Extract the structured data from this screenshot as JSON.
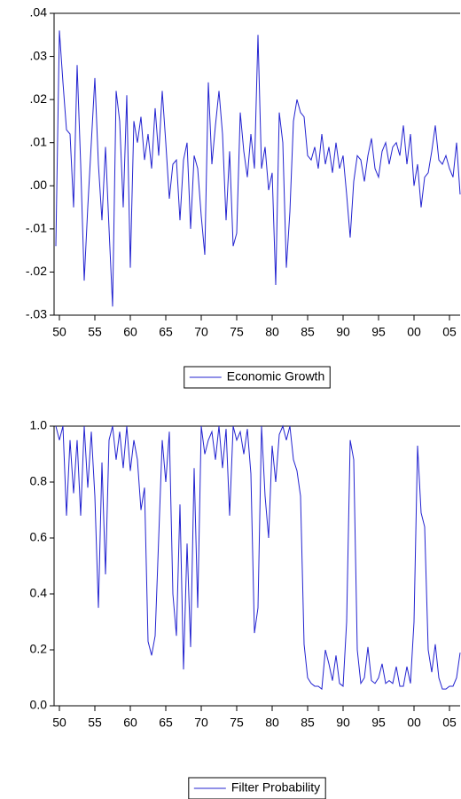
{
  "chart_data": [
    {
      "type": "line",
      "xlim": [
        1949.25,
        2006.5
      ],
      "xticks": [
        {
          "value": 1950,
          "label": "50"
        },
        {
          "value": 1955,
          "label": "55"
        },
        {
          "value": 1960,
          "label": "60"
        },
        {
          "value": 1965,
          "label": "65"
        },
        {
          "value": 1970,
          "label": "70"
        },
        {
          "value": 1975,
          "label": "75"
        },
        {
          "value": 1980,
          "label": "80"
        },
        {
          "value": 1985,
          "label": "85"
        },
        {
          "value": 1990,
          "label": "90"
        },
        {
          "value": 1995,
          "label": "95"
        },
        {
          "value": 2000,
          "label": "00"
        },
        {
          "value": 2005,
          "label": "05"
        }
      ],
      "ylim": [
        -0.03,
        0.04
      ],
      "yticks": [
        {
          "value": -0.03,
          "label": "-.03"
        },
        {
          "value": -0.02,
          "label": "-.02"
        },
        {
          "value": -0.01,
          "label": "-.01"
        },
        {
          "value": 0,
          "label": ".00"
        },
        {
          "value": 0.01,
          "label": ".01"
        },
        {
          "value": 0.02,
          "label": ".02"
        },
        {
          "value": 0.03,
          "label": ".03"
        },
        {
          "value": 0.04,
          "label": ".04"
        }
      ],
      "x": [
        1949.5,
        1950,
        1950.5,
        1951,
        1951.5,
        1952,
        1952.5,
        1953,
        1953.5,
        1954,
        1954.5,
        1955,
        1955.5,
        1956,
        1956.5,
        1957,
        1957.5,
        1958,
        1958.5,
        1959,
        1959.5,
        1960,
        1960.5,
        1961,
        1961.5,
        1962,
        1962.5,
        1963,
        1963.5,
        1964,
        1964.5,
        1965,
        1965.5,
        1966,
        1966.5,
        1967,
        1967.5,
        1968,
        1968.5,
        1969,
        1969.5,
        1970,
        1970.5,
        1971,
        1971.5,
        1972,
        1972.5,
        1973,
        1973.5,
        1974,
        1974.5,
        1975,
        1975.5,
        1976,
        1976.5,
        1977,
        1977.5,
        1978,
        1978.5,
        1979,
        1979.5,
        1980,
        1980.5,
        1981,
        1981.5,
        1982,
        1982.5,
        1983,
        1983.5,
        1984,
        1984.5,
        1985,
        1985.5,
        1986,
        1986.5,
        1987,
        1987.5,
        1988,
        1988.5,
        1989,
        1989.5,
        1990,
        1990.5,
        1991,
        1991.5,
        1992,
        1992.5,
        1993,
        1993.5,
        1994,
        1994.5,
        1995,
        1995.5,
        1996,
        1996.5,
        1997,
        1997.5,
        1998,
        1998.5,
        1999,
        1999.5,
        2000,
        2000.5,
        2001,
        2001.5,
        2002,
        2002.5,
        2003,
        2003.5,
        2004,
        2004.5,
        2005,
        2005.5,
        2006,
        2006.5
      ],
      "series": [
        {
          "name": "Economic Growth",
          "color": "#2323d0",
          "values": [
            -0.014,
            0.036,
            0.024,
            0.013,
            0.012,
            -0.005,
            0.028,
            0.005,
            -0.022,
            -0.005,
            0.01,
            0.025,
            0.005,
            -0.008,
            0.009,
            -0.01,
            -0.028,
            0.022,
            0.015,
            -0.005,
            0.021,
            -0.019,
            0.015,
            0.01,
            0.016,
            0.006,
            0.012,
            0.004,
            0.018,
            0.007,
            0.022,
            0.01,
            -0.003,
            0.005,
            0.006,
            -0.008,
            0.006,
            0.01,
            -0.01,
            0.007,
            0.004,
            -0.007,
            -0.016,
            0.024,
            0.005,
            0.014,
            0.022,
            0.012,
            -0.008,
            0.008,
            -0.014,
            -0.011,
            0.017,
            0.008,
            0.002,
            0.012,
            0.004,
            0.035,
            0.004,
            0.009,
            -0.001,
            0.003,
            -0.023,
            0.017,
            0.01,
            -0.019,
            -0.006,
            0.015,
            0.02,
            0.017,
            0.016,
            0.007,
            0.006,
            0.009,
            0.004,
            0.012,
            0.005,
            0.009,
            0.003,
            0.01,
            0.004,
            0.007,
            -0.002,
            -0.012,
            0.001,
            0.007,
            0.006,
            0.001,
            0.007,
            0.011,
            0.004,
            0.002,
            0.008,
            0.01,
            0.005,
            0.009,
            0.01,
            0.007,
            0.014,
            0.005,
            0.012,
            0.0,
            0.005,
            -0.005,
            0.002,
            0.003,
            0.008,
            0.014,
            0.006,
            0.005,
            0.007,
            0.004,
            0.002,
            0.01,
            -0.002
          ]
        }
      ]
    },
    {
      "type": "line",
      "xlim": [
        1949.25,
        2006.5
      ],
      "xticks": [
        {
          "value": 1950,
          "label": "50"
        },
        {
          "value": 1955,
          "label": "55"
        },
        {
          "value": 1960,
          "label": "60"
        },
        {
          "value": 1965,
          "label": "65"
        },
        {
          "value": 1970,
          "label": "70"
        },
        {
          "value": 1975,
          "label": "75"
        },
        {
          "value": 1980,
          "label": "80"
        },
        {
          "value": 1985,
          "label": "85"
        },
        {
          "value": 1990,
          "label": "90"
        },
        {
          "value": 1995,
          "label": "95"
        },
        {
          "value": 2000,
          "label": "00"
        },
        {
          "value": 2005,
          "label": "05"
        }
      ],
      "ylim": [
        0,
        1
      ],
      "yticks": [
        {
          "value": 0,
          "label": "0.0"
        },
        {
          "value": 0.2,
          "label": "0.2"
        },
        {
          "value": 0.4,
          "label": "0.4"
        },
        {
          "value": 0.6,
          "label": "0.6"
        },
        {
          "value": 0.8,
          "label": "0.8"
        },
        {
          "value": 1,
          "label": "1.0"
        }
      ],
      "x": [
        1949.5,
        1950,
        1950.5,
        1951,
        1951.5,
        1952,
        1952.5,
        1953,
        1953.5,
        1954,
        1954.5,
        1955,
        1955.5,
        1956,
        1956.5,
        1957,
        1957.5,
        1958,
        1958.5,
        1959,
        1959.5,
        1960,
        1960.5,
        1961,
        1961.5,
        1962,
        1962.5,
        1963,
        1963.5,
        1964,
        1964.5,
        1965,
        1965.5,
        1966,
        1966.5,
        1967,
        1967.5,
        1968,
        1968.5,
        1969,
        1969.5,
        1970,
        1970.5,
        1971,
        1971.5,
        1972,
        1972.5,
        1973,
        1973.5,
        1974,
        1974.5,
        1975,
        1975.5,
        1976,
        1976.5,
        1977,
        1977.5,
        1978,
        1978.5,
        1979,
        1979.5,
        1980,
        1980.5,
        1981,
        1981.5,
        1982,
        1982.5,
        1983,
        1983.5,
        1984,
        1984.5,
        1985,
        1985.5,
        1986,
        1986.5,
        1987,
        1987.5,
        1988,
        1988.5,
        1989,
        1989.5,
        1990,
        1990.5,
        1991,
        1991.5,
        1992,
        1992.5,
        1993,
        1993.5,
        1994,
        1994.5,
        1995,
        1995.5,
        1996,
        1996.5,
        1997,
        1997.5,
        1998,
        1998.5,
        1999,
        1999.5,
        2000,
        2000.5,
        2001,
        2001.5,
        2002,
        2002.5,
        2003,
        2003.5,
        2004,
        2004.5,
        2005,
        2005.5,
        2006,
        2006.5
      ],
      "series": [
        {
          "name": "Filter Probability",
          "color": "#2323d0",
          "values": [
            1.0,
            0.95,
            1.0,
            0.68,
            0.95,
            0.76,
            0.95,
            0.68,
            1.0,
            0.78,
            0.98,
            0.75,
            0.35,
            0.87,
            0.47,
            0.95,
            1.0,
            0.88,
            0.98,
            0.85,
            1.0,
            0.84,
            0.95,
            0.88,
            0.7,
            0.78,
            0.23,
            0.18,
            0.25,
            0.6,
            0.95,
            0.8,
            0.98,
            0.4,
            0.25,
            0.72,
            0.13,
            0.58,
            0.21,
            0.85,
            0.35,
            1.0,
            0.9,
            0.95,
            0.98,
            0.88,
            1.0,
            0.85,
            0.99,
            0.68,
            1.0,
            0.95,
            0.98,
            0.9,
            0.99,
            0.83,
            0.26,
            0.35,
            1.0,
            0.75,
            0.6,
            0.93,
            0.8,
            0.97,
            1.0,
            0.95,
            1.0,
            0.88,
            0.84,
            0.75,
            0.22,
            0.1,
            0.08,
            0.07,
            0.07,
            0.06,
            0.2,
            0.15,
            0.09,
            0.18,
            0.08,
            0.07,
            0.3,
            0.95,
            0.88,
            0.2,
            0.08,
            0.1,
            0.21,
            0.09,
            0.08,
            0.1,
            0.15,
            0.08,
            0.09,
            0.08,
            0.14,
            0.07,
            0.07,
            0.14,
            0.08,
            0.3,
            0.93,
            0.69,
            0.64,
            0.2,
            0.12,
            0.22,
            0.1,
            0.06,
            0.06,
            0.07,
            0.07,
            0.1,
            0.19
          ]
        }
      ]
    }
  ]
}
